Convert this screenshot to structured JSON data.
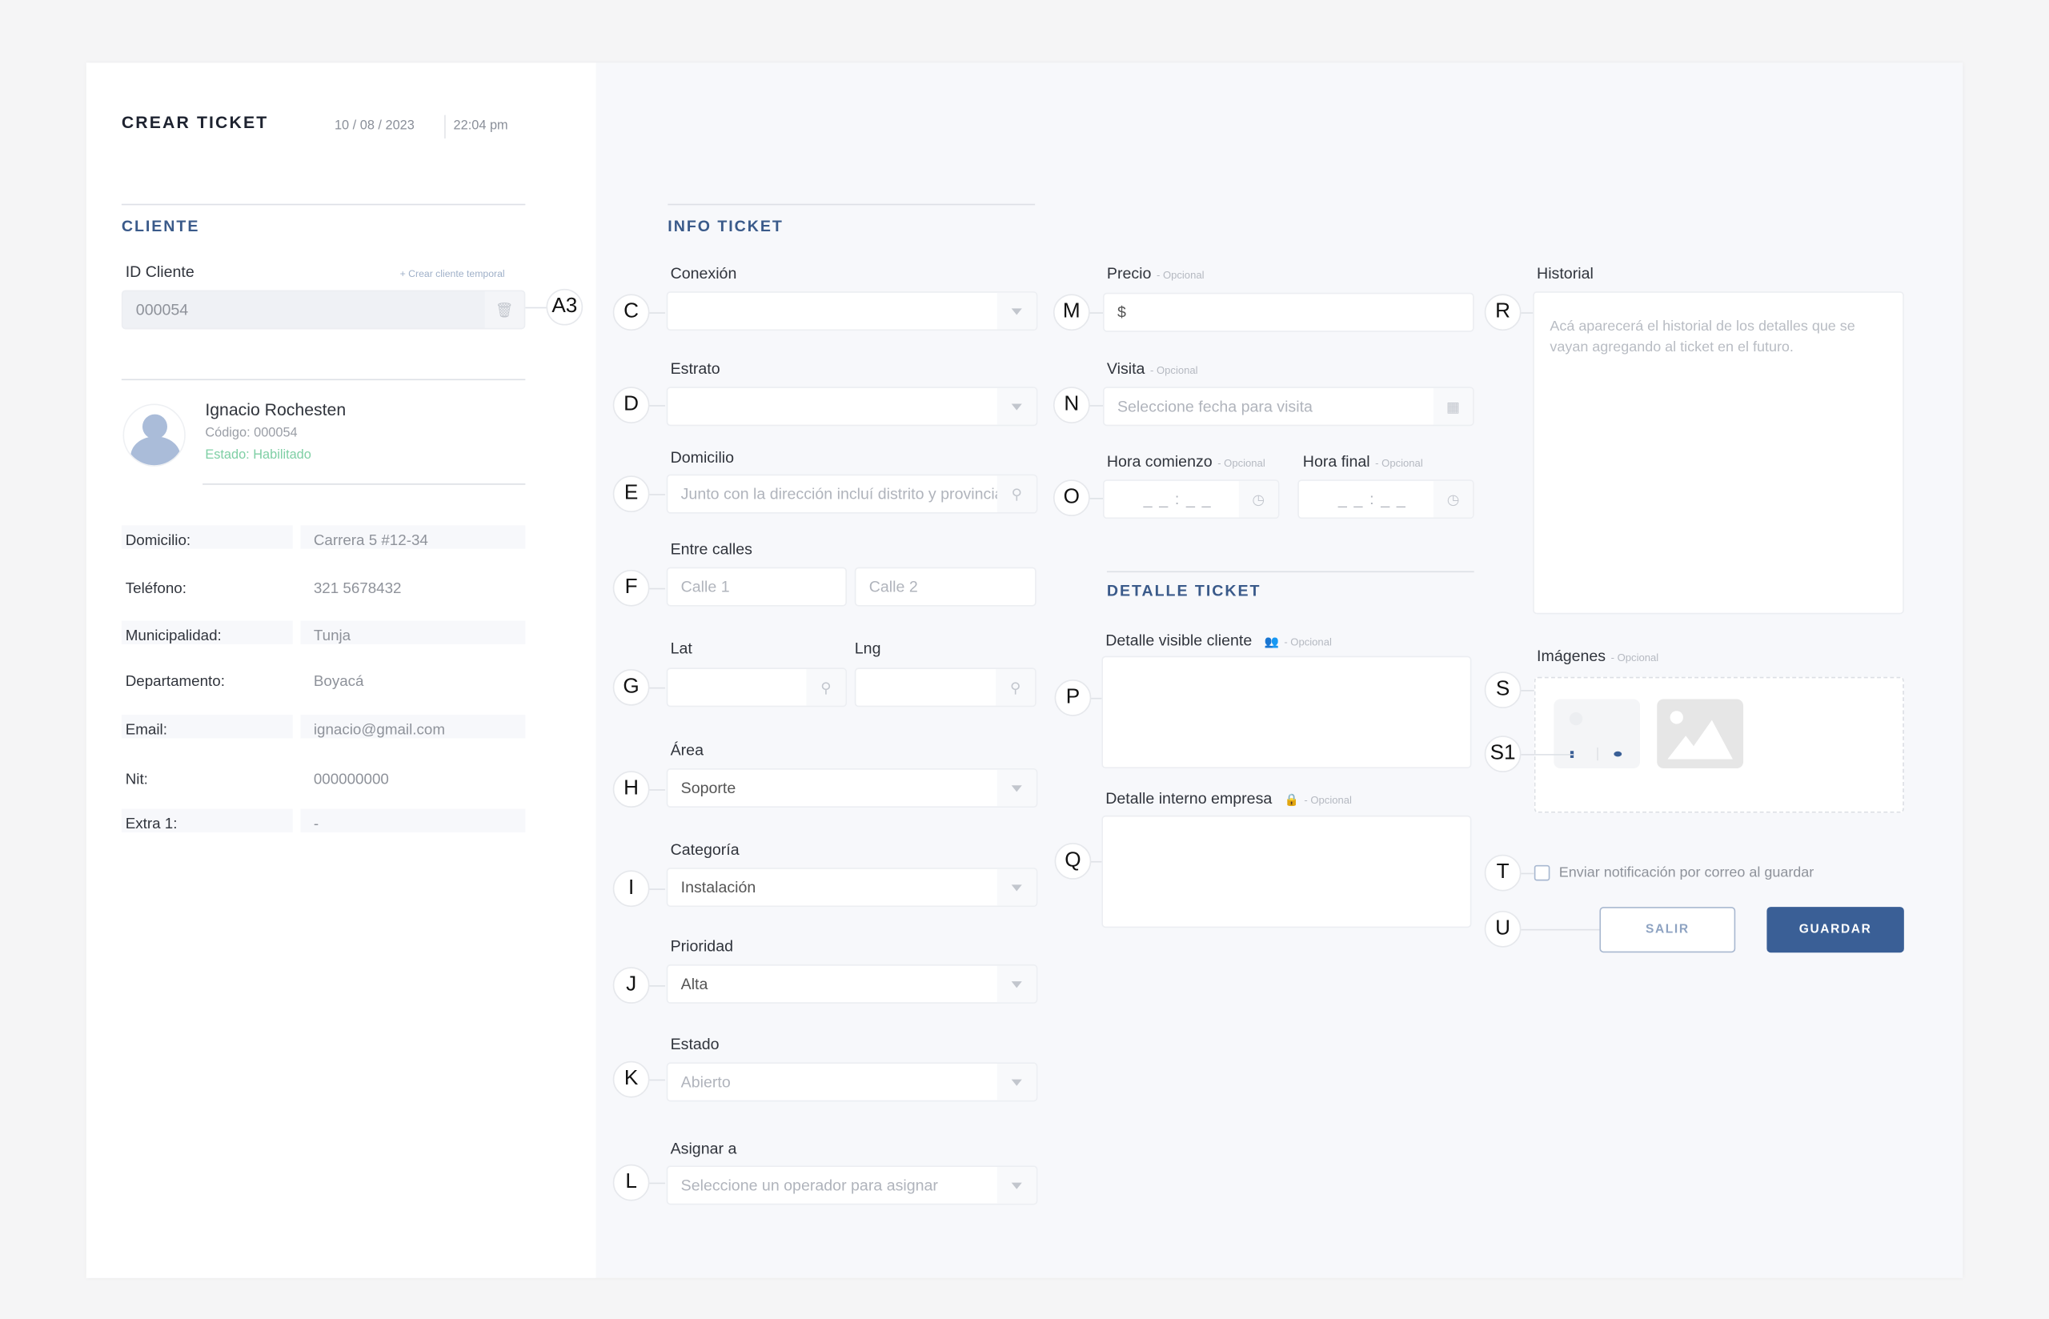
{
  "header": {
    "title": "CREAR TICKET",
    "date": "10 / 08 / 2023",
    "time": "22:04 pm"
  },
  "cliente": {
    "section": "CLIENTE",
    "id_label": "ID Cliente",
    "create_temp_link": "+ Crear cliente temporal",
    "id_value": "000054",
    "marker": "A3",
    "name": "Ignacio Rochesten",
    "code": "Código: 000054",
    "status": "Estado: Habilitado",
    "rows": [
      {
        "label": "Domicilio:",
        "value": "Carrera 5 #12-34"
      },
      {
        "label": "Teléfono:",
        "value": "321 5678432"
      },
      {
        "label": "Municipalidad:",
        "value": "Tunja"
      },
      {
        "label": "Departamento:",
        "value": "Boyacá"
      },
      {
        "label": "Email:",
        "value": "ignacio@gmail.com"
      },
      {
        "label": "Nit:",
        "value": "000000000"
      },
      {
        "label": "Extra 1:",
        "value": "-"
      }
    ]
  },
  "info": {
    "section": "INFO TICKET",
    "conexion": {
      "label": "Conexión",
      "marker": "C",
      "value": ""
    },
    "estrato": {
      "label": "Estrato",
      "marker": "D",
      "value": ""
    },
    "domicilio": {
      "label": "Domicilio",
      "marker": "E",
      "placeholder": "Junto con la dirección incluí distrito y provincia"
    },
    "entre": {
      "label": "Entre calles",
      "marker": "F",
      "placeholder1": "Calle 1",
      "placeholder2": "Calle 2"
    },
    "coords": {
      "lat_label": "Lat",
      "lng_label": "Lng",
      "marker": "G"
    },
    "area": {
      "label": "Área",
      "marker": "H",
      "value": "Soporte"
    },
    "categoria": {
      "label": "Categoría",
      "marker": "I",
      "value": "Instalación"
    },
    "prioridad": {
      "label": "Prioridad",
      "marker": "J",
      "value": "Alta"
    },
    "estado": {
      "label": "Estado",
      "marker": "K",
      "value": "Abierto"
    },
    "asignar": {
      "label": "Asignar a",
      "marker": "L",
      "placeholder": "Seleccione un operador para asignar"
    }
  },
  "optional": "- Opcional",
  "precio": {
    "label": "Precio",
    "marker": "M",
    "value": "$"
  },
  "visita": {
    "label": "Visita",
    "marker": "N",
    "placeholder": "Seleccione fecha para visita"
  },
  "horas": {
    "start_label": "Hora comienzo",
    "end_label": "Hora final",
    "marker": "O",
    "placeholder": "_ _ : _ _"
  },
  "detalle": {
    "section": "DETALLE TICKET",
    "visible_label": "Detalle visible cliente",
    "visible_marker": "P",
    "interno_label": "Detalle interno empresa",
    "interno_marker": "Q"
  },
  "historial": {
    "label": "Historial",
    "marker": "R",
    "placeholder": "Acá aparecerá el historial de los detalles que se vayan agregando al ticket en el futuro."
  },
  "imagenes": {
    "label": "Imágenes",
    "marker": "S",
    "thumb_marker": "S1"
  },
  "notify": {
    "label": "Enviar notificación por correo al guardar",
    "marker": "T",
    "checked": false
  },
  "actions": {
    "marker": "U",
    "cancel": "SALIR",
    "save": "GUARDAR"
  },
  "colors": {
    "accent": "#3a5f96",
    "section": "#3a5a8a",
    "status_ok": "#7fcfa5"
  }
}
